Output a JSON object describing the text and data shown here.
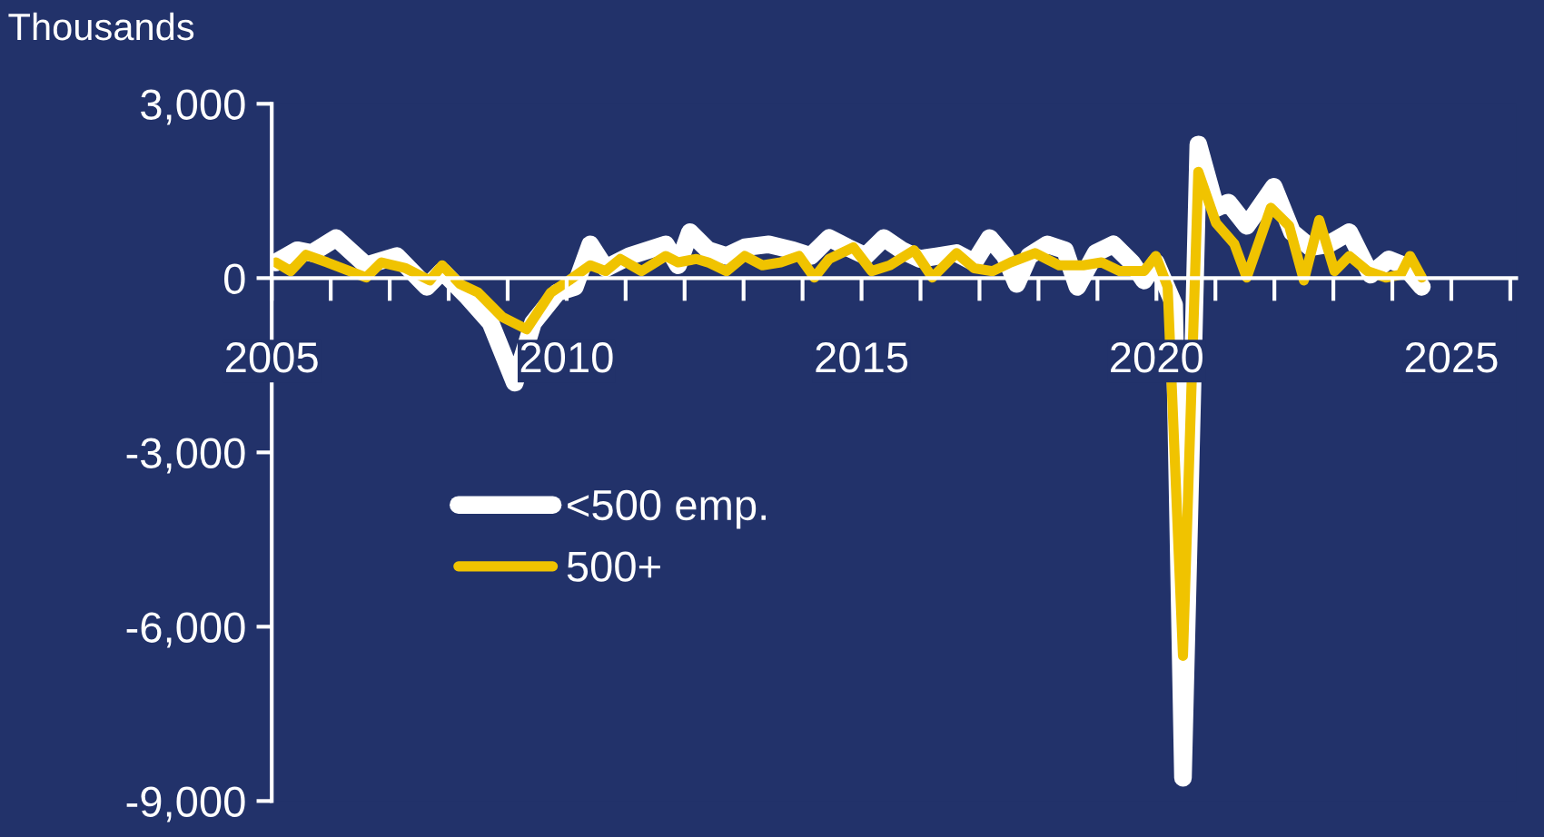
{
  "chart_data": {
    "type": "line",
    "ylabel": "Thousands",
    "xlim": [
      2005,
      2026.1
    ],
    "ylim": [
      -9000,
      3000
    ],
    "xticks": [
      2005,
      {
        "value": 2006,
        "label": null
      },
      {
        "value": 2007,
        "label": null
      },
      {
        "value": 2008,
        "label": null
      },
      {
        "value": 2009,
        "label": null
      },
      2010,
      {
        "value": 2011,
        "label": null
      },
      {
        "value": 2012,
        "label": null
      },
      {
        "value": 2013,
        "label": null
      },
      {
        "value": 2014,
        "label": null
      },
      2015,
      {
        "value": 2016,
        "label": null
      },
      {
        "value": 2017,
        "label": null
      },
      {
        "value": 2018,
        "label": null
      },
      {
        "value": 2019,
        "label": null
      },
      2020,
      {
        "value": 2021,
        "label": null
      },
      {
        "value": 2022,
        "label": null
      },
      {
        "value": 2023,
        "label": null
      },
      {
        "value": 2024,
        "label": null
      },
      2025,
      {
        "value": 2026,
        "label": null
      }
    ],
    "yticks": [
      {
        "value": 3000,
        "label": "3,000"
      },
      0,
      {
        "value": -3000,
        "label": "-3,000"
      },
      {
        "value": -6000,
        "label": "-6,000"
      },
      {
        "value": -9000,
        "label": "-9,000"
      }
    ],
    "grid": false,
    "legend": "center",
    "marker": "none",
    "line_style": "solid",
    "series": [
      {
        "name": "<500 emp.",
        "color": "#ffffff",
        "x": [
          2005.07,
          2005.43,
          2005.68,
          2006.09,
          2006.6,
          2007.12,
          2007.63,
          2007.89,
          2008.3,
          2008.71,
          2009.12,
          2009.43,
          2009.84,
          2010.14,
          2010.4,
          2010.66,
          2011.07,
          2011.68,
          2011.89,
          2012.09,
          2012.4,
          2012.71,
          2013.02,
          2013.43,
          2013.84,
          2014.14,
          2014.45,
          2014.76,
          2015.07,
          2015.38,
          2015.68,
          2015.99,
          2016.3,
          2016.61,
          2016.91,
          2017.17,
          2017.43,
          2017.63,
          2017.84,
          2018.15,
          2018.45,
          2018.66,
          2018.97,
          2019.27,
          2019.58,
          2019.79,
          2019.99,
          2020.3,
          2020.45,
          2020.71,
          2021.01,
          2021.22,
          2021.53,
          2021.99,
          2022.3,
          2022.61,
          2022.91,
          2023.27,
          2023.63,
          2023.94,
          2024.19,
          2024.5
        ],
        "values": [
          270,
          480,
          430,
          690,
          220,
          380,
          -150,
          120,
          -300,
          -770,
          -1800,
          -770,
          -250,
          -150,
          580,
          170,
          380,
          580,
          220,
          790,
          480,
          380,
          530,
          580,
          480,
          380,
          690,
          530,
          380,
          690,
          480,
          330,
          380,
          430,
          270,
          690,
          380,
          -100,
          380,
          580,
          480,
          -150,
          430,
          580,
          270,
          -40,
          270,
          -460,
          -8600,
          2300,
          1200,
          1300,
          900,
          1570,
          790,
          530,
          580,
          790,
          60,
          320,
          220,
          -150
        ]
      },
      {
        "name": "500+",
        "color": "#f0c300",
        "x": [
          2005.07,
          2005.32,
          2005.58,
          2005.94,
          2006.6,
          2006.86,
          2007.27,
          2007.68,
          2007.89,
          2008.19,
          2008.5,
          2008.91,
          2009.32,
          2009.73,
          2010.04,
          2010.4,
          2010.66,
          2010.91,
          2011.27,
          2011.68,
          2011.89,
          2012.2,
          2012.4,
          2012.71,
          2013.02,
          2013.32,
          2013.63,
          2013.94,
          2014.2,
          2014.45,
          2014.86,
          2015.17,
          2015.48,
          2015.89,
          2016.2,
          2016.61,
          2016.91,
          2017.22,
          2017.53,
          2017.94,
          2018.35,
          2018.76,
          2019.07,
          2019.38,
          2019.79,
          2019.99,
          2020.19,
          2020.45,
          2020.71,
          2021.01,
          2021.32,
          2021.53,
          2021.94,
          2022.25,
          2022.5,
          2022.76,
          2023.02,
          2023.27,
          2023.58,
          2023.89,
          2024.14,
          2024.3,
          2024.5
        ],
        "values": [
          270,
          120,
          400,
          270,
          10,
          270,
          170,
          -40,
          220,
          -100,
          -250,
          -670,
          -880,
          -250,
          -40,
          220,
          120,
          330,
          120,
          380,
          270,
          330,
          270,
          120,
          380,
          220,
          270,
          380,
          10,
          330,
          530,
          120,
          220,
          480,
          10,
          430,
          170,
          120,
          270,
          430,
          220,
          220,
          270,
          120,
          120,
          380,
          -150,
          -6500,
          1830,
          950,
          590,
          10,
          1210,
          900,
          -40,
          1000,
          120,
          380,
          120,
          10,
          60,
          380,
          10
        ]
      }
    ]
  }
}
